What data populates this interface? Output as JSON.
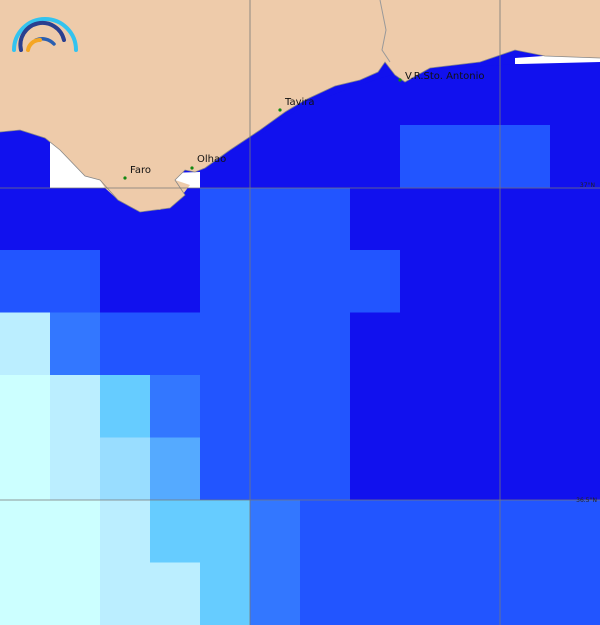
{
  "map": {
    "legend_colors": [
      "#1111ee",
      "#2255ff",
      "#3377ff",
      "#55aaff",
      "#66ccff",
      "#99ddff",
      "#bbeeff",
      "#ccffff"
    ],
    "cells": [
      [
        0,
        0,
        0,
        0,
        0,
        0,
        0,
        0,
        1,
        1,
        1,
        0
      ],
      [
        0,
        0,
        0,
        0,
        1,
        1,
        1,
        0,
        0,
        0,
        0,
        0
      ],
      [
        1,
        1,
        0,
        0,
        1,
        1,
        1,
        1,
        0,
        0,
        0,
        0
      ],
      [
        6,
        2,
        1,
        1,
        1,
        1,
        1,
        0,
        0,
        0,
        0,
        0
      ],
      [
        7,
        6,
        4,
        2,
        1,
        1,
        1,
        0,
        0,
        0,
        0,
        0
      ],
      [
        7,
        6,
        5,
        3,
        1,
        1,
        1,
        0,
        0,
        0,
        0,
        0
      ],
      [
        7,
        7,
        6,
        4,
        4,
        2,
        1,
        1,
        1,
        1,
        1,
        1
      ],
      [
        7,
        7,
        6,
        6,
        4,
        2,
        1,
        1,
        1,
        1,
        1,
        1
      ]
    ],
    "land_color": "#eecbaa",
    "towns": [
      {
        "name": "Faro"
      },
      {
        "name": "Olhao"
      },
      {
        "name": "Tavira"
      },
      {
        "name": "V.R.Sto. Antonio"
      }
    ],
    "lat_labels": [
      "37°N",
      "36.5°N"
    ]
  }
}
